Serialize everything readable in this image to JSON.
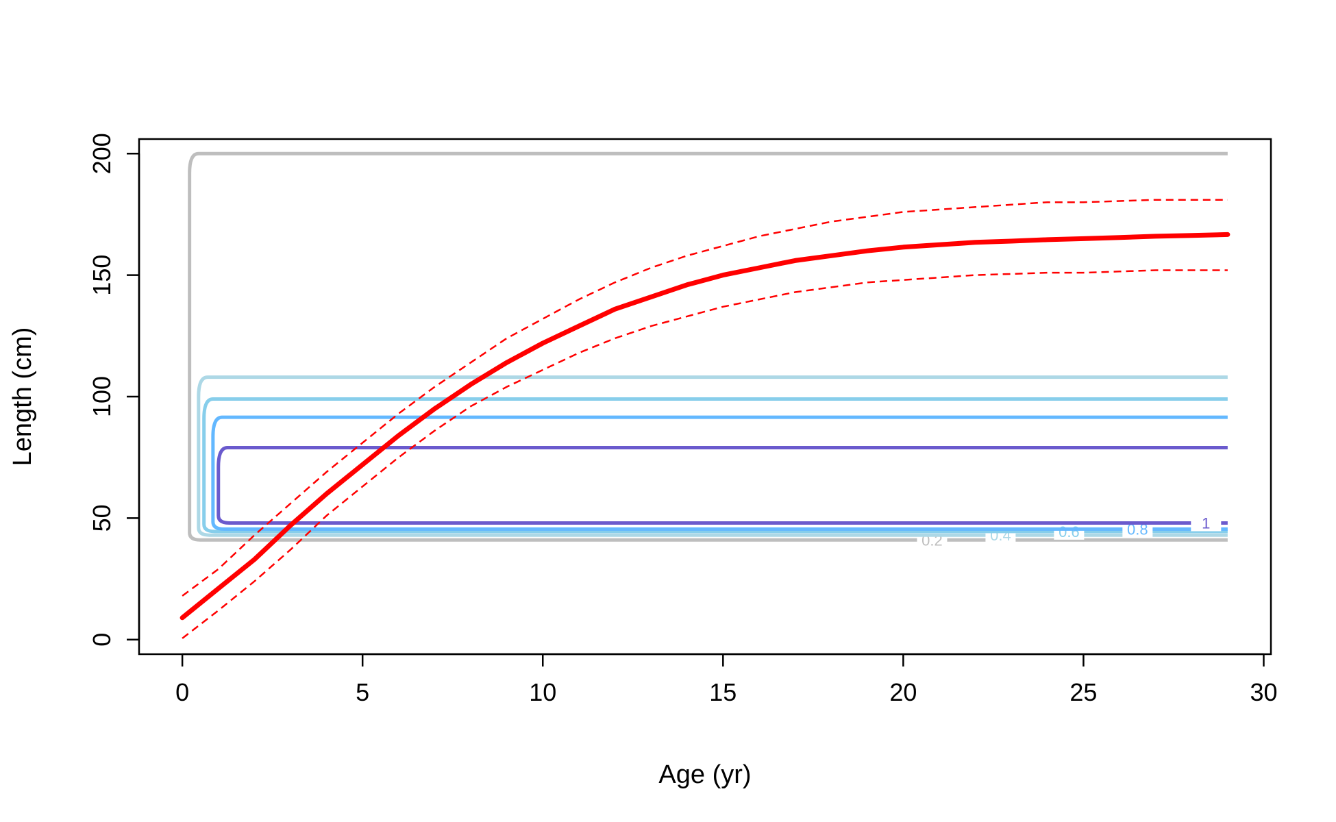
{
  "chart_data": {
    "type": "line",
    "xlabel": "Age (yr)",
    "ylabel": "Length (cm)",
    "xlim": [
      -1.2,
      30.2
    ],
    "ylim": [
      -6,
      206
    ],
    "x_ticks": [
      0,
      5,
      10,
      15,
      20,
      25,
      30
    ],
    "y_ticks": [
      0,
      50,
      100,
      150,
      200
    ],
    "grid": false,
    "legend": "none",
    "growth_curve": {
      "color": "#ff0000",
      "mean": [
        [
          0,
          9
        ],
        [
          1,
          21
        ],
        [
          2,
          33
        ],
        [
          3,
          47
        ],
        [
          4,
          60
        ],
        [
          5,
          72
        ],
        [
          6,
          84
        ],
        [
          7,
          95
        ],
        [
          8,
          105
        ],
        [
          9,
          114
        ],
        [
          10,
          122
        ],
        [
          11,
          129
        ],
        [
          12,
          136
        ],
        [
          13,
          141
        ],
        [
          14,
          146
        ],
        [
          15,
          150
        ],
        [
          16,
          153
        ],
        [
          17,
          156
        ],
        [
          18,
          158
        ],
        [
          19,
          160
        ],
        [
          20,
          161.5
        ],
        [
          21,
          162.5
        ],
        [
          22,
          163.5
        ],
        [
          23,
          164
        ],
        [
          24,
          164.6
        ],
        [
          25,
          165
        ],
        [
          26,
          165.5
        ],
        [
          27,
          166
        ],
        [
          28,
          166.3
        ],
        [
          29,
          166.7
        ]
      ],
      "upper": [
        [
          0,
          18
        ],
        [
          1,
          29
        ],
        [
          2,
          43
        ],
        [
          3,
          56
        ],
        [
          4,
          69
        ],
        [
          5,
          81
        ],
        [
          6,
          93
        ],
        [
          7,
          104
        ],
        [
          8,
          114
        ],
        [
          9,
          124
        ],
        [
          10,
          132
        ],
        [
          11,
          140
        ],
        [
          12,
          147
        ],
        [
          13,
          153
        ],
        [
          14,
          158
        ],
        [
          15,
          162
        ],
        [
          16,
          166
        ],
        [
          17,
          169
        ],
        [
          18,
          172
        ],
        [
          19,
          174
        ],
        [
          20,
          176
        ],
        [
          21,
          177
        ],
        [
          22,
          178
        ],
        [
          23,
          179
        ],
        [
          24,
          180
        ],
        [
          25,
          180
        ],
        [
          26,
          180.5
        ],
        [
          27,
          181
        ],
        [
          28,
          181
        ],
        [
          29,
          181
        ]
      ],
      "lower": [
        [
          0,
          0.5
        ],
        [
          1,
          12
        ],
        [
          2,
          24
        ],
        [
          3,
          37
        ],
        [
          4,
          51
        ],
        [
          5,
          63
        ],
        [
          6,
          75
        ],
        [
          7,
          86
        ],
        [
          8,
          96
        ],
        [
          9,
          104
        ],
        [
          10,
          111
        ],
        [
          11,
          118
        ],
        [
          12,
          124
        ],
        [
          13,
          129
        ],
        [
          14,
          133
        ],
        [
          15,
          137
        ],
        [
          16,
          140
        ],
        [
          17,
          143
        ],
        [
          18,
          145
        ],
        [
          19,
          147
        ],
        [
          20,
          148
        ],
        [
          21,
          149
        ],
        [
          22,
          150
        ],
        [
          23,
          150.5
        ],
        [
          24,
          151
        ],
        [
          25,
          151
        ],
        [
          26,
          151.5
        ],
        [
          27,
          152
        ],
        [
          28,
          152
        ],
        [
          29,
          152
        ]
      ]
    },
    "contours": [
      {
        "label": "0.2",
        "color": "#bebebe",
        "top": 200,
        "bottom": 41,
        "x_left": 0.2
      },
      {
        "label": "0.4",
        "color": "#add8e6",
        "top": 108,
        "bottom": 43,
        "x_left": 0.45
      },
      {
        "label": "0.6",
        "color": "#87ceeb",
        "top": 99,
        "bottom": 44.5,
        "x_left": 0.6
      },
      {
        "label": "0.8",
        "color": "#63b8ff",
        "top": 91.5,
        "bottom": 45.5,
        "x_left": 0.85
      },
      {
        "label": "1",
        "color": "#6a5acd",
        "top": 79,
        "bottom": 48,
        "x_left": 1.0
      }
    ]
  }
}
